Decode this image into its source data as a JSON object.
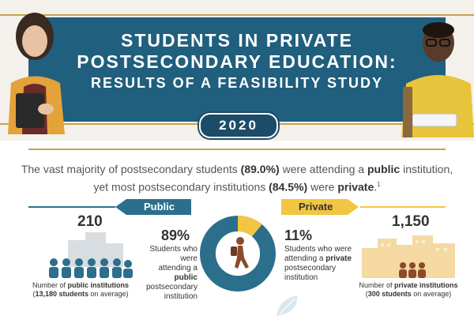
{
  "banner": {
    "title_line1": "STUDENTS IN PRIVATE",
    "title_line2": "POSTSECONDARY EDUCATION:",
    "title_line3": "RESULTS OF A FEASIBILITY STUDY",
    "year": "2020"
  },
  "statement": {
    "part1": "The vast majority of postsecondary students ",
    "pct_public": "(89.0%)",
    "part2": " were attending a ",
    "public_word": "public",
    "part3": " institution,",
    "part4": "yet most postsecondary institutions ",
    "pct_private": "(84.5%)",
    "part5": " were ",
    "private_word": "private",
    "part6": ".",
    "footnote": "1"
  },
  "public": {
    "label": "Public",
    "count": "210",
    "percent": "89%",
    "desc_line1": "Students who were",
    "desc_prefix": "attending a ",
    "desc_bold": "public",
    "desc_line3": "postsecondary",
    "desc_line4": "institution",
    "caption_line1_prefix": "Number of ",
    "caption_line1_bold": "public institutions",
    "caption_line2_prefix": "(",
    "caption_line2_bold": "13,180 students",
    "caption_line2_suffix": " on average)",
    "share": 0.89
  },
  "private": {
    "label": "Private",
    "count": "1,150",
    "percent": "11%",
    "desc_line1": "Students who were",
    "desc_prefix": "attending a ",
    "desc_bold": "private",
    "desc_line3": "postsecondary",
    "desc_line4": "institution",
    "caption_line1_prefix": "Number of ",
    "caption_line1_bold": "private institutions",
    "caption_line2_prefix": "(",
    "caption_line2_bold": "300 students",
    "caption_line2_suffix": " on average)",
    "share": 0.11
  },
  "colors": {
    "banner_blue": "#205f7d",
    "gold": "#c9a24a",
    "private_yellow": "#f2c542",
    "public_blue": "#2b6f8c",
    "building_tan": "#f4d9a2"
  },
  "icons": {
    "public_institution": "building-with-people-icon",
    "private_institution": "building-with-people-icon",
    "student": "walking-student-icon",
    "leaf": "leaf-icon"
  }
}
